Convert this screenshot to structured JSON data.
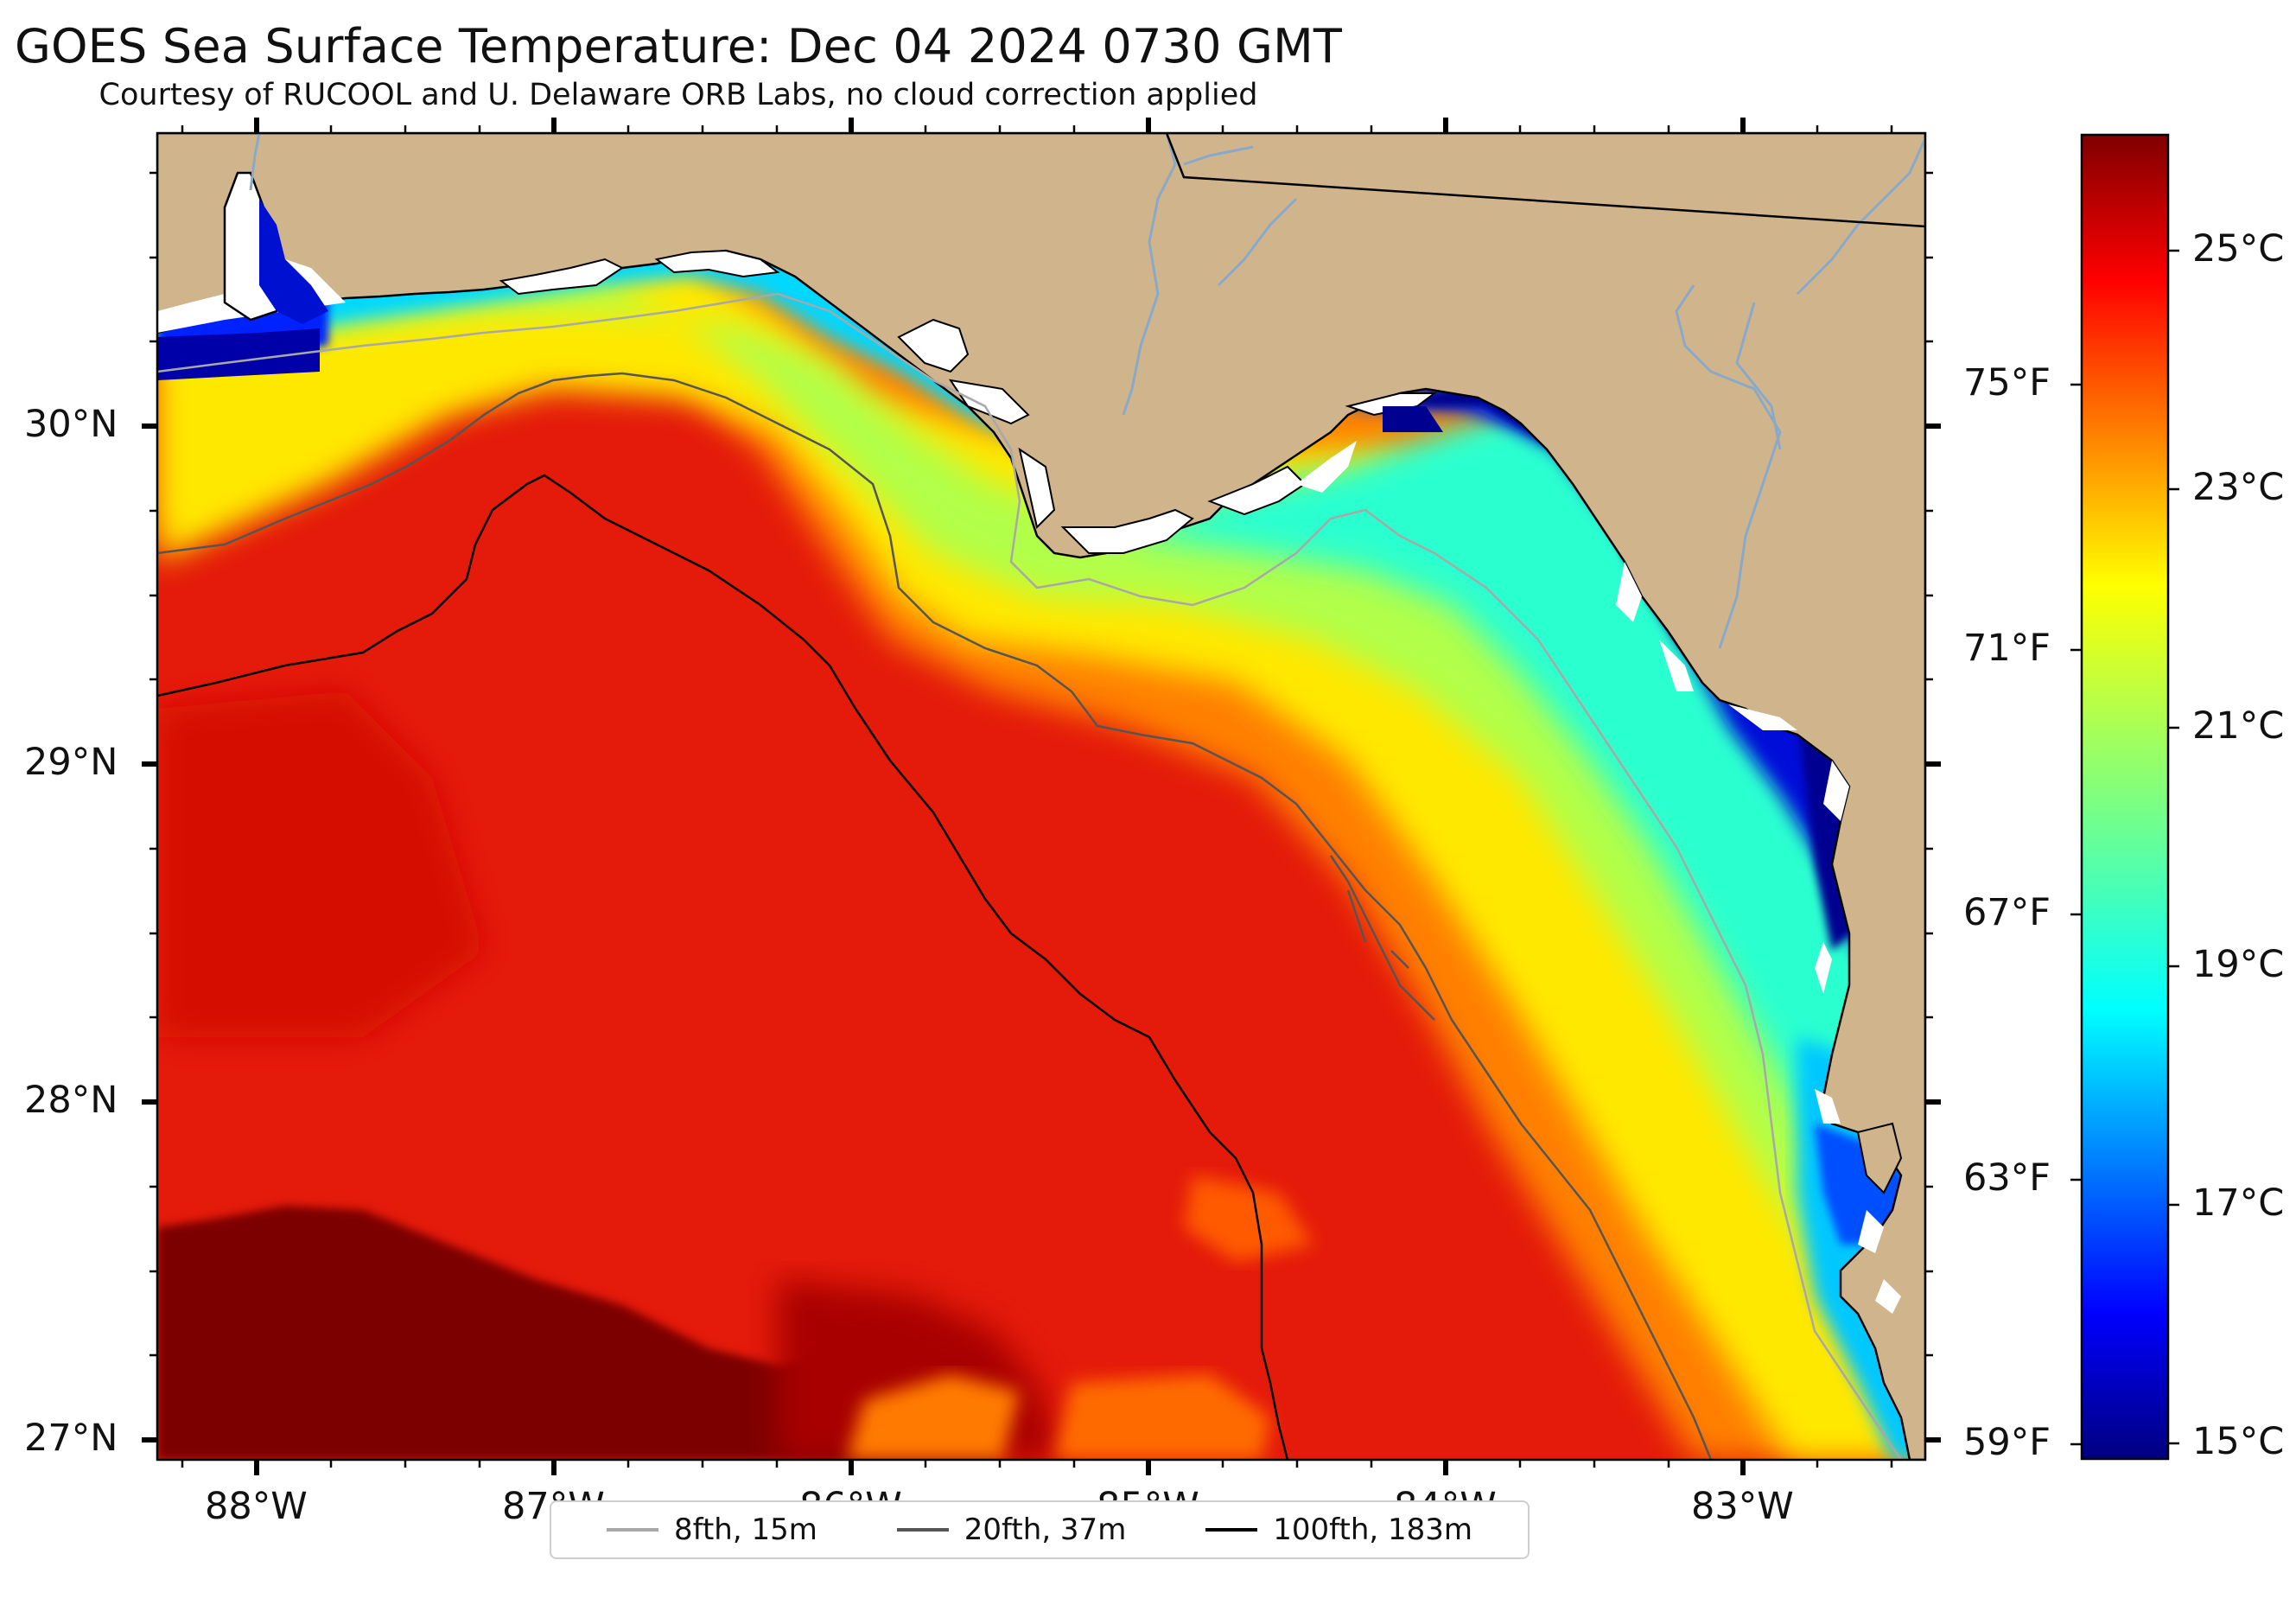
{
  "title": "GOES Sea Surface Temperature: Dec 04 2024 0730 GMT",
  "subtitle": "Courtesy of RUCOOL and U. Delaware ORB Labs, no cloud correction applied",
  "colors": {
    "land": "#d0b48c",
    "coast": "#000000",
    "rivers": "#8aa9c9",
    "contour_8fth": "#a8a8a8",
    "contour_20fth": "#555555",
    "contour_100fth": "#000000",
    "colormap": "jet"
  },
  "axes": {
    "lat_labels": [
      "30°N",
      "29°N",
      "28°N",
      "27°N"
    ],
    "lon_labels": [
      "88°W",
      "87°W",
      "86°W",
      "85°W",
      "84°W",
      "83°W"
    ]
  },
  "colorbar": {
    "celsius_labels": [
      "25°C",
      "23°C",
      "21°C",
      "19°C",
      "17°C",
      "15°C"
    ],
    "fahrenheit_labels": [
      "75°F",
      "71°F",
      "67°F",
      "63°F",
      "59°F"
    ],
    "range_celsius": [
      14.8,
      26.1
    ]
  },
  "legend": {
    "items": [
      {
        "label": "8fth, 15m",
        "color": "#a8a8a8"
      },
      {
        "label": "20fth, 37m",
        "color": "#555555"
      },
      {
        "label": "100fth, 183m",
        "color": "#000000"
      }
    ]
  }
}
